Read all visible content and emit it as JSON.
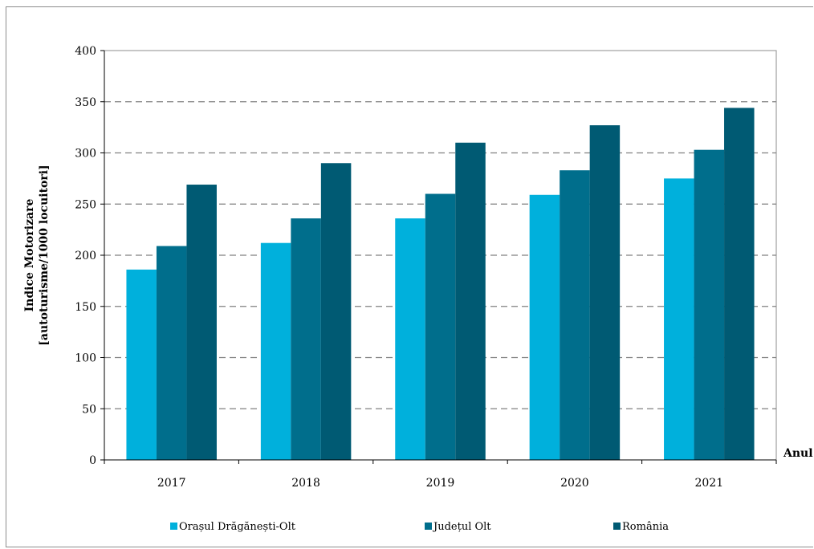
{
  "chart_data": {
    "type": "bar",
    "title": "",
    "ylabel_line1": "Indice Motorizare",
    "ylabel_line2": "[autoturisme/1000 locuitori]",
    "xlabel": "Anul",
    "categories": [
      "2017",
      "2018",
      "2019",
      "2020",
      "2021"
    ],
    "ylim": [
      0,
      400
    ],
    "yticks": [
      0,
      50,
      100,
      150,
      200,
      250,
      300,
      350,
      400
    ],
    "grid": "horizontal dashed",
    "legend_position": "bottom",
    "series": [
      {
        "name": "Orașul Drăgănești-Olt",
        "color": "#00b0dc",
        "values": [
          186,
          212,
          236,
          259,
          275
        ]
      },
      {
        "name": "Județul Olt",
        "color": "#006e8c",
        "values": [
          209,
          236,
          260,
          283,
          303
        ]
      },
      {
        "name": "România",
        "color": "#005a73",
        "values": [
          269,
          290,
          310,
          327,
          344
        ]
      }
    ]
  }
}
